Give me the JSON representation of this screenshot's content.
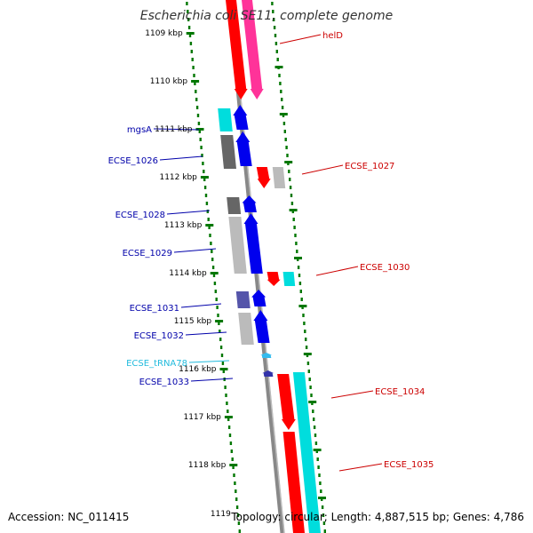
{
  "title": "Escherichia coli SE11, complete genome",
  "footer": {
    "accession": "Accession: NC_011415",
    "info": "Topology: circular; Length: 4,887,515 bp; Genes: 4,786"
  },
  "colors": {
    "forward_label": "#0000aa",
    "reverse_label": "#cc0000",
    "trna_label": "#22bbdd",
    "tick": "#007700",
    "backbone": "#888888"
  },
  "kbp_ticks": [
    "1109 kbp",
    "1110 kbp",
    "1111 kbp",
    "1112 kbp",
    "1113 kbp",
    "1114 kbp",
    "1115 kbp",
    "1116 kbp",
    "1117 kbp",
    "1118 kbp",
    "1119"
  ],
  "features": [
    {
      "label": "helD",
      "strand": "reverse"
    },
    {
      "label": "mgsA",
      "strand": "forward"
    },
    {
      "label": "ECSE_1026",
      "strand": "forward"
    },
    {
      "label": "ECSE_1027",
      "strand": "reverse"
    },
    {
      "label": "ECSE_1028",
      "strand": "forward"
    },
    {
      "label": "ECSE_1029",
      "strand": "forward"
    },
    {
      "label": "ECSE_1030",
      "strand": "reverse"
    },
    {
      "label": "ECSE_1031",
      "strand": "forward"
    },
    {
      "label": "ECSE_1032",
      "strand": "forward"
    },
    {
      "label": "ECSE_tRNA78",
      "strand": "forward",
      "type": "tRNA"
    },
    {
      "label": "ECSE_1033",
      "strand": "forward"
    },
    {
      "label": "ECSE_1034",
      "strand": "reverse"
    },
    {
      "label": "ECSE_1035",
      "strand": "reverse"
    }
  ]
}
